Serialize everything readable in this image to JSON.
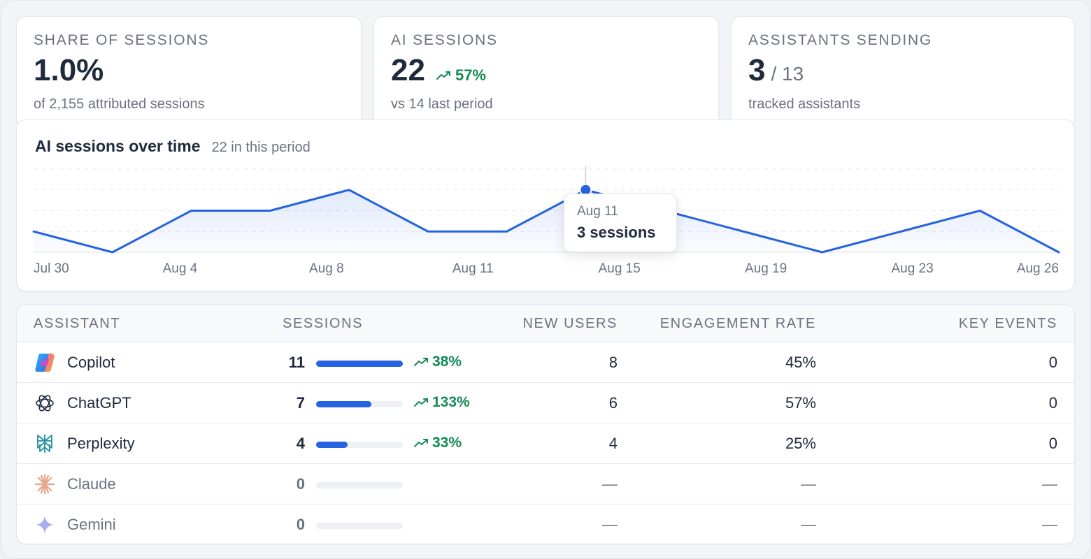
{
  "stats": [
    {
      "label": "SHARE OF SESSIONS",
      "value": "1.0%",
      "sub": "of 2,155 attributed sessions"
    },
    {
      "label": "AI SESSIONS",
      "value": "22",
      "trend": "57%",
      "sub": "vs 14 last period"
    },
    {
      "label": "ASSISTANTS SENDING",
      "value": "3",
      "denom": "/ 13",
      "sub": "tracked assistants"
    }
  ],
  "chart": {
    "title": "AI sessions over time",
    "subtitle": "22 in this period",
    "tooltip": {
      "date": "Aug 11",
      "value": "3 sessions"
    }
  },
  "chart_data": {
    "type": "area",
    "x_labels": [
      "Jul 30",
      "Aug 4",
      "Aug 8",
      "Aug 11",
      "Aug 15",
      "Aug 19",
      "Aug 23",
      "Aug 26"
    ],
    "values": [
      1,
      0,
      2,
      2,
      3,
      1,
      1,
      3,
      2,
      1,
      0,
      1,
      2,
      0
    ],
    "ylim": [
      0,
      4
    ],
    "grid": true,
    "highlighted_index": 7,
    "color": "#2563e0"
  },
  "table": {
    "headers": {
      "assistant": "ASSISTANT",
      "sessions": "SESSIONS",
      "new_users": "NEW USERS",
      "engagement": "ENGAGEMENT RATE",
      "key_events": "KEY EVENTS"
    },
    "rows": [
      {
        "name": "Copilot",
        "icon": "copilot-logo",
        "sessions": "11",
        "share": 1.0,
        "trend": "38%",
        "new_users": "8",
        "engagement": "45%",
        "key_events": "0"
      },
      {
        "name": "ChatGPT",
        "icon": "chatgpt-logo",
        "sessions": "7",
        "share": 0.64,
        "trend": "133%",
        "new_users": "6",
        "engagement": "57%",
        "key_events": "0"
      },
      {
        "name": "Perplexity",
        "icon": "perplexity-logo",
        "sessions": "4",
        "share": 0.36,
        "trend": "33%",
        "new_users": "4",
        "engagement": "25%",
        "key_events": "0"
      },
      {
        "name": "Claude",
        "icon": "claude-logo",
        "sessions": "0",
        "share": 0,
        "trend": "",
        "new_users": "—",
        "engagement": "—",
        "key_events": "—"
      },
      {
        "name": "Gemini",
        "icon": "gemini-logo",
        "sessions": "0",
        "share": 0,
        "trend": "",
        "new_users": "—",
        "engagement": "—",
        "key_events": "—"
      }
    ]
  }
}
